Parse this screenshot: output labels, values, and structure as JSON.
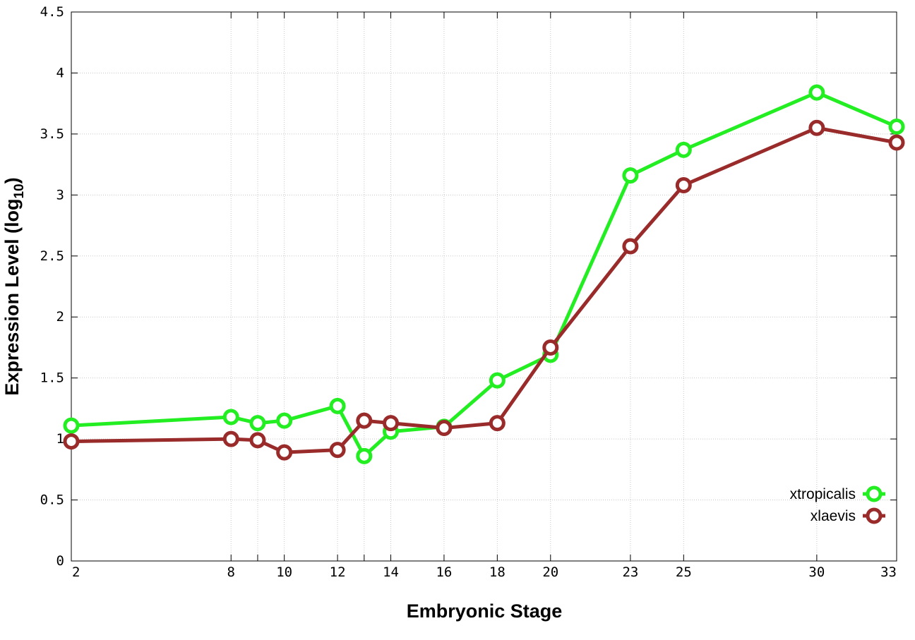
{
  "chart_data": {
    "type": "line",
    "xlabel": "Embryonic Stage",
    "ylabel_main": "Expression Level (log",
    "ylabel_sub": "10",
    "ylabel_close": ")",
    "x_ticks": [
      "2",
      "8",
      "9",
      "10",
      "12",
      "13",
      "14",
      "16",
      "18",
      "20",
      "23",
      "25",
      "30",
      "33"
    ],
    "x_tick_labels": [
      "2",
      "8",
      "",
      "10",
      "12",
      "",
      "14",
      "16",
      "18",
      "20",
      "23",
      "25",
      "30",
      "33"
    ],
    "y_ticks": [
      "0",
      "0.5",
      "1",
      "1.5",
      "2",
      "2.5",
      "3",
      "3.5",
      "4",
      "4.5"
    ],
    "ylim": [
      0,
      4.5
    ],
    "grid": true,
    "legend_position": "bottom-right",
    "series": [
      {
        "name": "xtropicalis",
        "color": "#22ee22",
        "values": [
          1.11,
          1.18,
          1.13,
          1.15,
          1.27,
          0.86,
          1.06,
          1.1,
          1.48,
          1.69,
          3.16,
          3.37,
          3.84,
          3.56
        ]
      },
      {
        "name": "xlaevis",
        "color": "#992b2b",
        "values": [
          0.98,
          1.0,
          0.99,
          0.89,
          0.91,
          1.15,
          1.13,
          1.09,
          1.13,
          1.75,
          2.58,
          3.08,
          3.55,
          3.43
        ]
      }
    ]
  }
}
